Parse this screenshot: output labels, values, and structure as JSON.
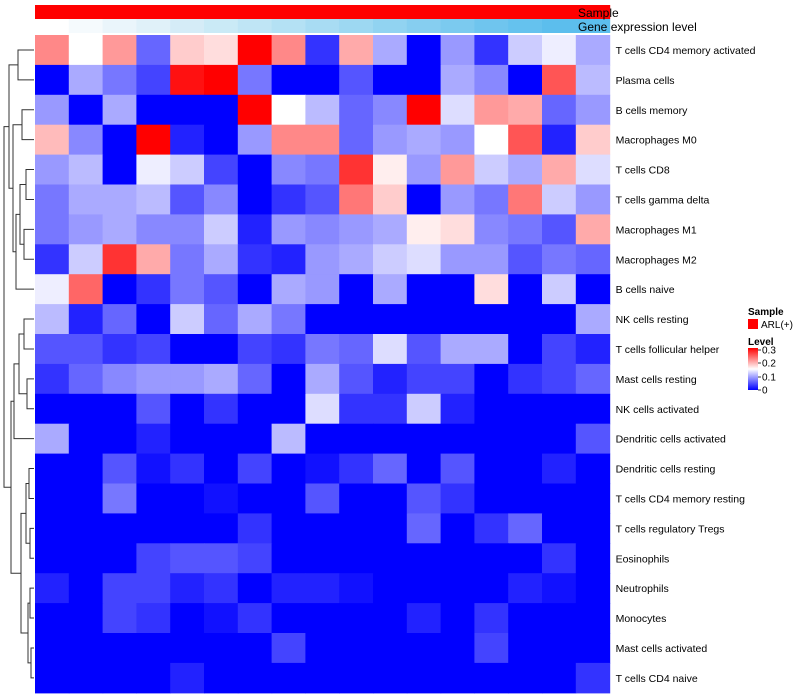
{
  "chart_data": {
    "type": "heatmap",
    "annotation_labels": [
      "Sample",
      "Gene expression level"
    ],
    "sample_group": "ARL(+)",
    "sample_color": "#ff0000",
    "gene_expression_colors": [
      "#ffffff",
      "#f5fafd",
      "#eaf5fb",
      "#e0f1f9",
      "#d5ecf7",
      "#caeaf6",
      "#bfe5f5",
      "#b4e1f4",
      "#a8dcf3",
      "#9dd8f2",
      "#91d3f1",
      "#86cef0",
      "#7bcaef",
      "#6fc5ee",
      "#65c2ee",
      "#5cbeed"
    ],
    "rows": [
      "T cells CD4 memory activated",
      "Plasma cells",
      "B cells memory",
      "Macrophages M0",
      "T cells CD8",
      "T cells gamma delta",
      "Macrophages M1",
      "Macrophages M2",
      "B cells naive",
      "NK cells resting",
      "T cells follicular helper",
      "Mast cells resting",
      "NK cells activated",
      "Dendritic cells activated",
      "Dendritic cells resting",
      "T cells CD4 memory resting",
      "T cells regulatory  Tregs",
      "Eosinophils",
      "Neutrophils",
      "Monocytes",
      "Mast cells activated",
      "T cells CD4 naive"
    ],
    "values": [
      [
        0.22,
        0.15,
        0.21,
        0.06,
        0.18,
        0.17,
        0.3,
        0.22,
        0.03,
        0.2,
        0.1,
        0.0,
        0.09,
        0.03,
        0.12,
        0.14,
        0.1
      ],
      [
        0.0,
        0.1,
        0.07,
        0.04,
        0.29,
        0.3,
        0.07,
        0.0,
        0.0,
        0.05,
        0.0,
        0.0,
        0.1,
        0.08,
        0.0,
        0.25,
        0.11
      ],
      [
        0.09,
        0.0,
        0.1,
        0.0,
        0.0,
        0.0,
        0.3,
        0.15,
        0.11,
        0.06,
        0.08,
        0.3,
        0.13,
        0.21,
        0.2,
        0.06,
        0.09
      ],
      [
        0.19,
        0.08,
        0.0,
        0.3,
        0.02,
        0.0,
        0.09,
        0.22,
        0.22,
        0.06,
        0.09,
        0.1,
        0.09,
        0.15,
        0.25,
        0.02,
        0.18
      ],
      [
        0.09,
        0.11,
        0.0,
        0.14,
        0.12,
        0.04,
        0.0,
        0.08,
        0.07,
        0.27,
        0.16,
        0.09,
        0.21,
        0.12,
        0.1,
        0.2,
        0.13
      ],
      [
        0.07,
        0.1,
        0.1,
        0.11,
        0.05,
        0.08,
        0.0,
        0.03,
        0.05,
        0.23,
        0.18,
        0.0,
        0.09,
        0.07,
        0.23,
        0.12,
        0.09
      ],
      [
        0.07,
        0.09,
        0.1,
        0.08,
        0.08,
        0.12,
        0.02,
        0.09,
        0.08,
        0.09,
        0.1,
        0.16,
        0.17,
        0.08,
        0.07,
        0.05,
        0.2
      ],
      [
        0.03,
        0.12,
        0.27,
        0.2,
        0.07,
        0.1,
        0.03,
        0.02,
        0.09,
        0.1,
        0.12,
        0.13,
        0.09,
        0.09,
        0.05,
        0.07,
        0.06
      ],
      [
        0.14,
        0.24,
        0.0,
        0.03,
        0.07,
        0.05,
        0.0,
        0.1,
        0.09,
        0.0,
        0.1,
        0.0,
        0.0,
        0.17,
        0.0,
        0.12,
        0.0
      ],
      [
        0.11,
        0.02,
        0.06,
        0.0,
        0.12,
        0.06,
        0.1,
        0.07,
        0.0,
        0.0,
        0.0,
        0.0,
        0.0,
        0.0,
        0.0,
        0.0,
        0.1
      ],
      [
        0.05,
        0.05,
        0.03,
        0.04,
        0.0,
        0.0,
        0.04,
        0.03,
        0.07,
        0.06,
        0.13,
        0.05,
        0.1,
        0.1,
        0.0,
        0.04,
        0.02
      ],
      [
        0.03,
        0.06,
        0.08,
        0.09,
        0.09,
        0.1,
        0.06,
        0.0,
        0.1,
        0.05,
        0.02,
        0.04,
        0.04,
        0.0,
        0.03,
        0.04,
        0.06
      ],
      [
        0.0,
        0.0,
        0.0,
        0.05,
        0.0,
        0.03,
        0.0,
        0.0,
        0.13,
        0.03,
        0.03,
        0.12,
        0.02,
        0.0,
        0.0,
        0.0,
        0.0
      ],
      [
        0.1,
        0.0,
        0.0,
        0.02,
        0.0,
        0.0,
        0.0,
        0.11,
        0.0,
        0.0,
        0.0,
        0.0,
        0.0,
        0.0,
        0.0,
        0.0,
        0.05
      ],
      [
        0.0,
        0.0,
        0.05,
        0.01,
        0.03,
        0.0,
        0.04,
        0.0,
        0.01,
        0.03,
        0.06,
        0.0,
        0.05,
        0.0,
        0.0,
        0.02,
        0.0
      ],
      [
        0.0,
        0.0,
        0.07,
        0.0,
        0.0,
        0.01,
        0.0,
        0.0,
        0.05,
        0.0,
        0.0,
        0.05,
        0.03,
        0.0,
        0.0,
        0.0,
        0.0
      ],
      [
        0.0,
        0.0,
        0.0,
        0.0,
        0.0,
        0.0,
        0.03,
        0.0,
        0.0,
        0.0,
        0.0,
        0.06,
        0.0,
        0.03,
        0.06,
        0.0,
        0.0
      ],
      [
        0.0,
        0.0,
        0.0,
        0.04,
        0.05,
        0.05,
        0.04,
        0.0,
        0.0,
        0.0,
        0.0,
        0.0,
        0.0,
        0.0,
        0.0,
        0.03,
        0.0
      ],
      [
        0.02,
        0.0,
        0.04,
        0.04,
        0.02,
        0.03,
        0.0,
        0.02,
        0.02,
        0.01,
        0.0,
        0.0,
        0.0,
        0.0,
        0.02,
        0.01,
        0.0
      ],
      [
        0.0,
        0.0,
        0.04,
        0.03,
        0.0,
        0.01,
        0.03,
        0.0,
        0.0,
        0.0,
        0.0,
        0.02,
        0.0,
        0.03,
        0.0,
        0.0,
        0.0
      ],
      [
        0.0,
        0.0,
        0.0,
        0.0,
        0.0,
        0.0,
        0.0,
        0.04,
        0.0,
        0.0,
        0.0,
        0.0,
        0.0,
        0.04,
        0.0,
        0.0,
        0.0
      ],
      [
        0.0,
        0.0,
        0.0,
        0.0,
        0.02,
        0.0,
        0.0,
        0.0,
        0.0,
        0.0,
        0.0,
        0.0,
        0.0,
        0.0,
        0.0,
        0.0,
        0.03
      ]
    ],
    "color_scale": {
      "min": 0,
      "mid": 0.15,
      "max": 0.3,
      "low": "#0000ff",
      "mid_color": "#ffffff",
      "high": "#ff0000"
    },
    "legend": {
      "sample_title": "Sample",
      "sample_label": "ARL(+)",
      "level_title": "Level",
      "level_ticks": [
        "0.3",
        "0.2",
        "0.1",
        "0"
      ],
      "placement": "right"
    }
  }
}
